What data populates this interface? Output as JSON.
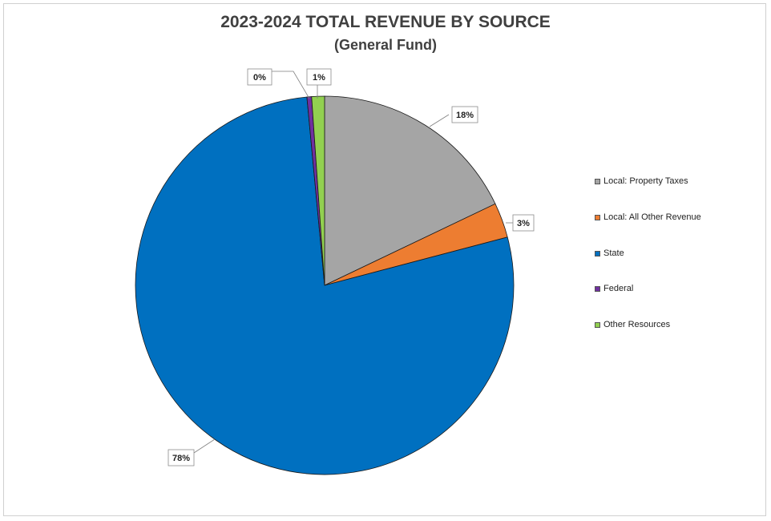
{
  "chart_data": {
    "type": "pie",
    "title": "2023-2024 TOTAL REVENUE BY SOURCE",
    "subtitle": "(General Fund)",
    "legend_position": "right",
    "slices": [
      {
        "name": "Local: Property Taxes",
        "value": 18,
        "label": "18%",
        "color": "#A5A5A5"
      },
      {
        "name": "Local: All Other Revenue",
        "value": 3,
        "label": "3%",
        "color": "#ED7D31"
      },
      {
        "name": "State",
        "value": 78,
        "label": "78%",
        "color": "#0070C0"
      },
      {
        "name": "Federal",
        "value": 0.4,
        "label": "0%",
        "color": "#7030A0"
      },
      {
        "name": "Other Resources",
        "value": 1.1,
        "label": "1%",
        "color": "#92D050"
      }
    ]
  }
}
